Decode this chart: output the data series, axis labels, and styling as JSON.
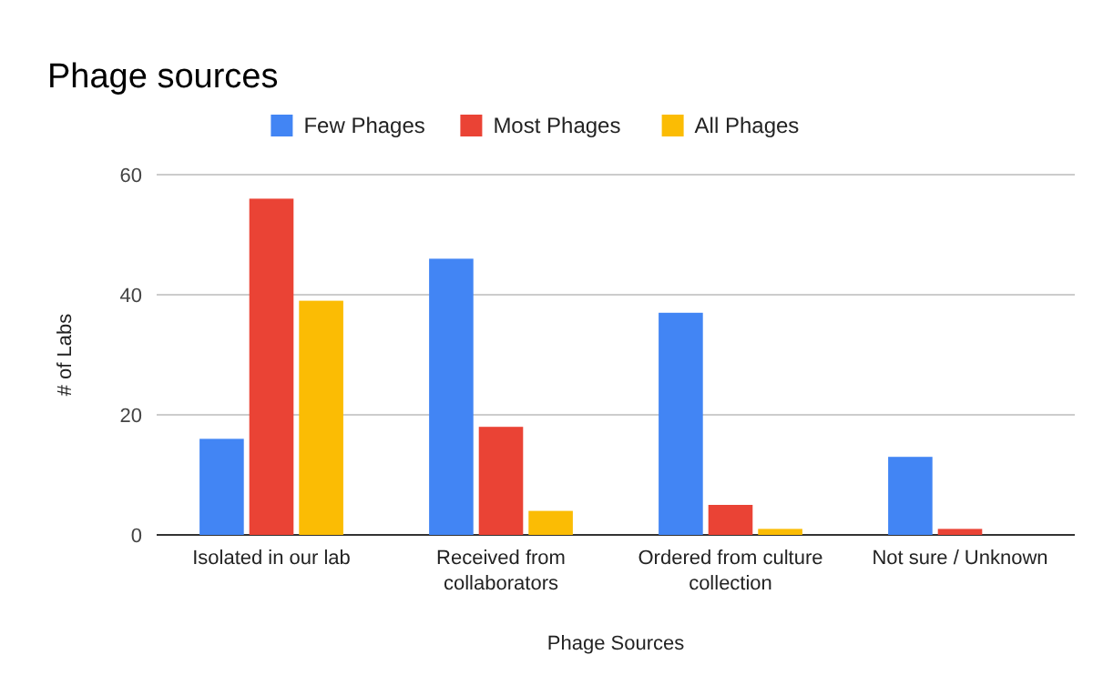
{
  "chart_data": {
    "type": "bar",
    "title": "Phage sources",
    "xlabel": "Phage Sources",
    "ylabel": "# of Labs",
    "categories": [
      "Isolated in our lab",
      "Received from collaborators",
      "Ordered from culture collection",
      "Not sure / Unknown"
    ],
    "series": [
      {
        "name": "Few Phages",
        "color": "#4285f4",
        "values": [
          16,
          46,
          37,
          13
        ]
      },
      {
        "name": "Most Phages",
        "color": "#ea4335",
        "values": [
          56,
          18,
          5,
          1
        ]
      },
      {
        "name": "All Phages",
        "color": "#fbbc04",
        "values": [
          39,
          4,
          1,
          0
        ]
      }
    ],
    "ylim": [
      0,
      60
    ],
    "yticks": [
      0,
      20,
      40,
      60
    ],
    "grid": "y",
    "legend": "top"
  }
}
